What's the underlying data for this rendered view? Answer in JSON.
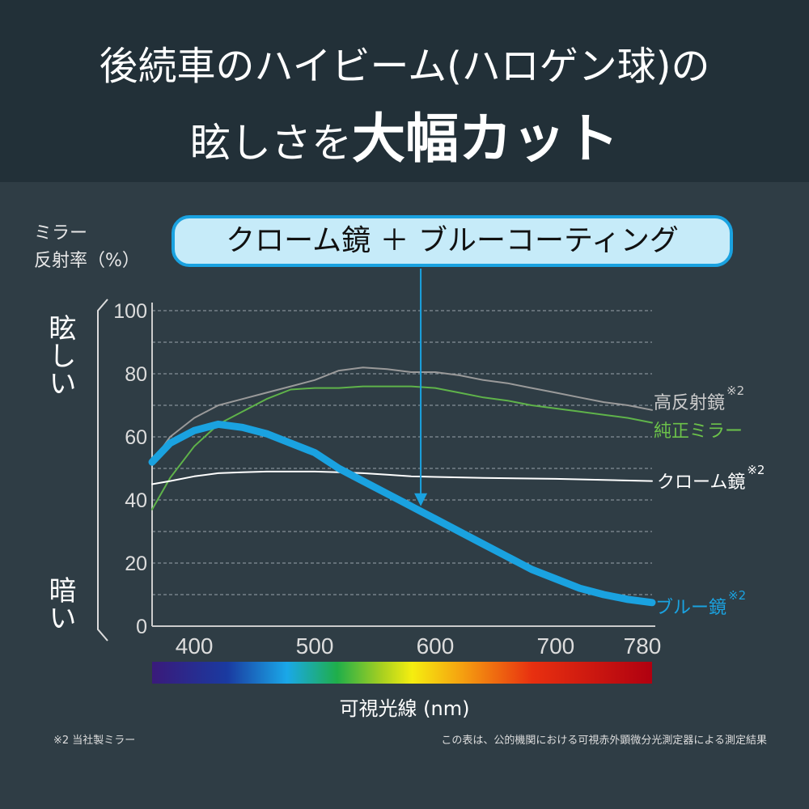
{
  "header": {
    "line1": "後続車のハイビーム(ハロゲン球)の",
    "line2_pre": "眩しさを",
    "line2_big": "大幅カット"
  },
  "callout": "クローム鏡 ＋ ブルーコーティング",
  "yaxis_title": {
    "line1": "ミラー",
    "line2": "反射率（%）"
  },
  "bright_label": "眩しい",
  "dark_label": "暗い",
  "footnote_left": "※2 当社製ミラー",
  "footnote_right": "この表は、公的機関における可視赤外顕微分光測定器による測定結果",
  "chart_data": {
    "type": "line",
    "xlabel": "可視光線 (nm)",
    "ylabel": "ミラー 反射率（%）",
    "xlim": [
      365,
      780
    ],
    "ylim": [
      0,
      100
    ],
    "xticks": [
      400,
      500,
      600,
      700,
      780
    ],
    "yticks": [
      0,
      20,
      40,
      60,
      80,
      100
    ],
    "grid": "dashed horizontal every 10",
    "legend": "labels at right end of lines",
    "series": [
      {
        "name": "高反射鏡",
        "note": "※2",
        "color": "#9a9a9a",
        "x": [
          365,
          380,
          400,
          420,
          440,
          460,
          480,
          500,
          520,
          540,
          560,
          580,
          600,
          620,
          640,
          660,
          680,
          700,
          720,
          740,
          760,
          780
        ],
        "y": [
          52,
          60,
          66,
          70,
          72,
          74,
          76,
          78,
          81,
          82,
          81.5,
          80.5,
          80.5,
          79.5,
          78,
          77,
          75.5,
          74,
          72.5,
          71,
          70,
          68.5
        ]
      },
      {
        "name": "純正ミラー",
        "note": "",
        "color": "#5fb34a",
        "x": [
          365,
          380,
          400,
          420,
          440,
          460,
          480,
          500,
          520,
          540,
          560,
          580,
          600,
          620,
          640,
          660,
          680,
          700,
          720,
          740,
          760,
          780
        ],
        "y": [
          37,
          47,
          57,
          64,
          68,
          72,
          75,
          75.5,
          75.5,
          76,
          76,
          76,
          75.5,
          74,
          72.5,
          71.5,
          70,
          69,
          68,
          67,
          66,
          64.5
        ]
      },
      {
        "name": "クローム鏡",
        "note": "※2",
        "color": "#ffffff",
        "x": [
          365,
          380,
          400,
          420,
          440,
          460,
          480,
          500,
          520,
          540,
          560,
          580,
          600,
          640,
          700,
          780
        ],
        "y": [
          45,
          46,
          47.5,
          48.5,
          48.8,
          49,
          49,
          49,
          48.8,
          48.5,
          48,
          47.5,
          47.3,
          47,
          46.7,
          46
        ]
      },
      {
        "name": "ブルー鏡",
        "note": "※2",
        "color": "#1aa2e0",
        "x": [
          365,
          380,
          400,
          420,
          440,
          460,
          480,
          500,
          520,
          540,
          560,
          580,
          600,
          620,
          640,
          660,
          680,
          700,
          720,
          740,
          760,
          780
        ],
        "y": [
          52,
          58,
          62,
          64,
          63,
          61,
          58,
          55,
          50,
          46,
          42,
          38,
          34,
          30,
          26,
          22,
          18,
          15,
          12,
          10,
          8.5,
          7.5
        ]
      }
    ],
    "annotation": {
      "text": "クローム鏡 ＋ ブルーコーティング",
      "points_to_x": 588,
      "points_to_y": 38
    }
  }
}
